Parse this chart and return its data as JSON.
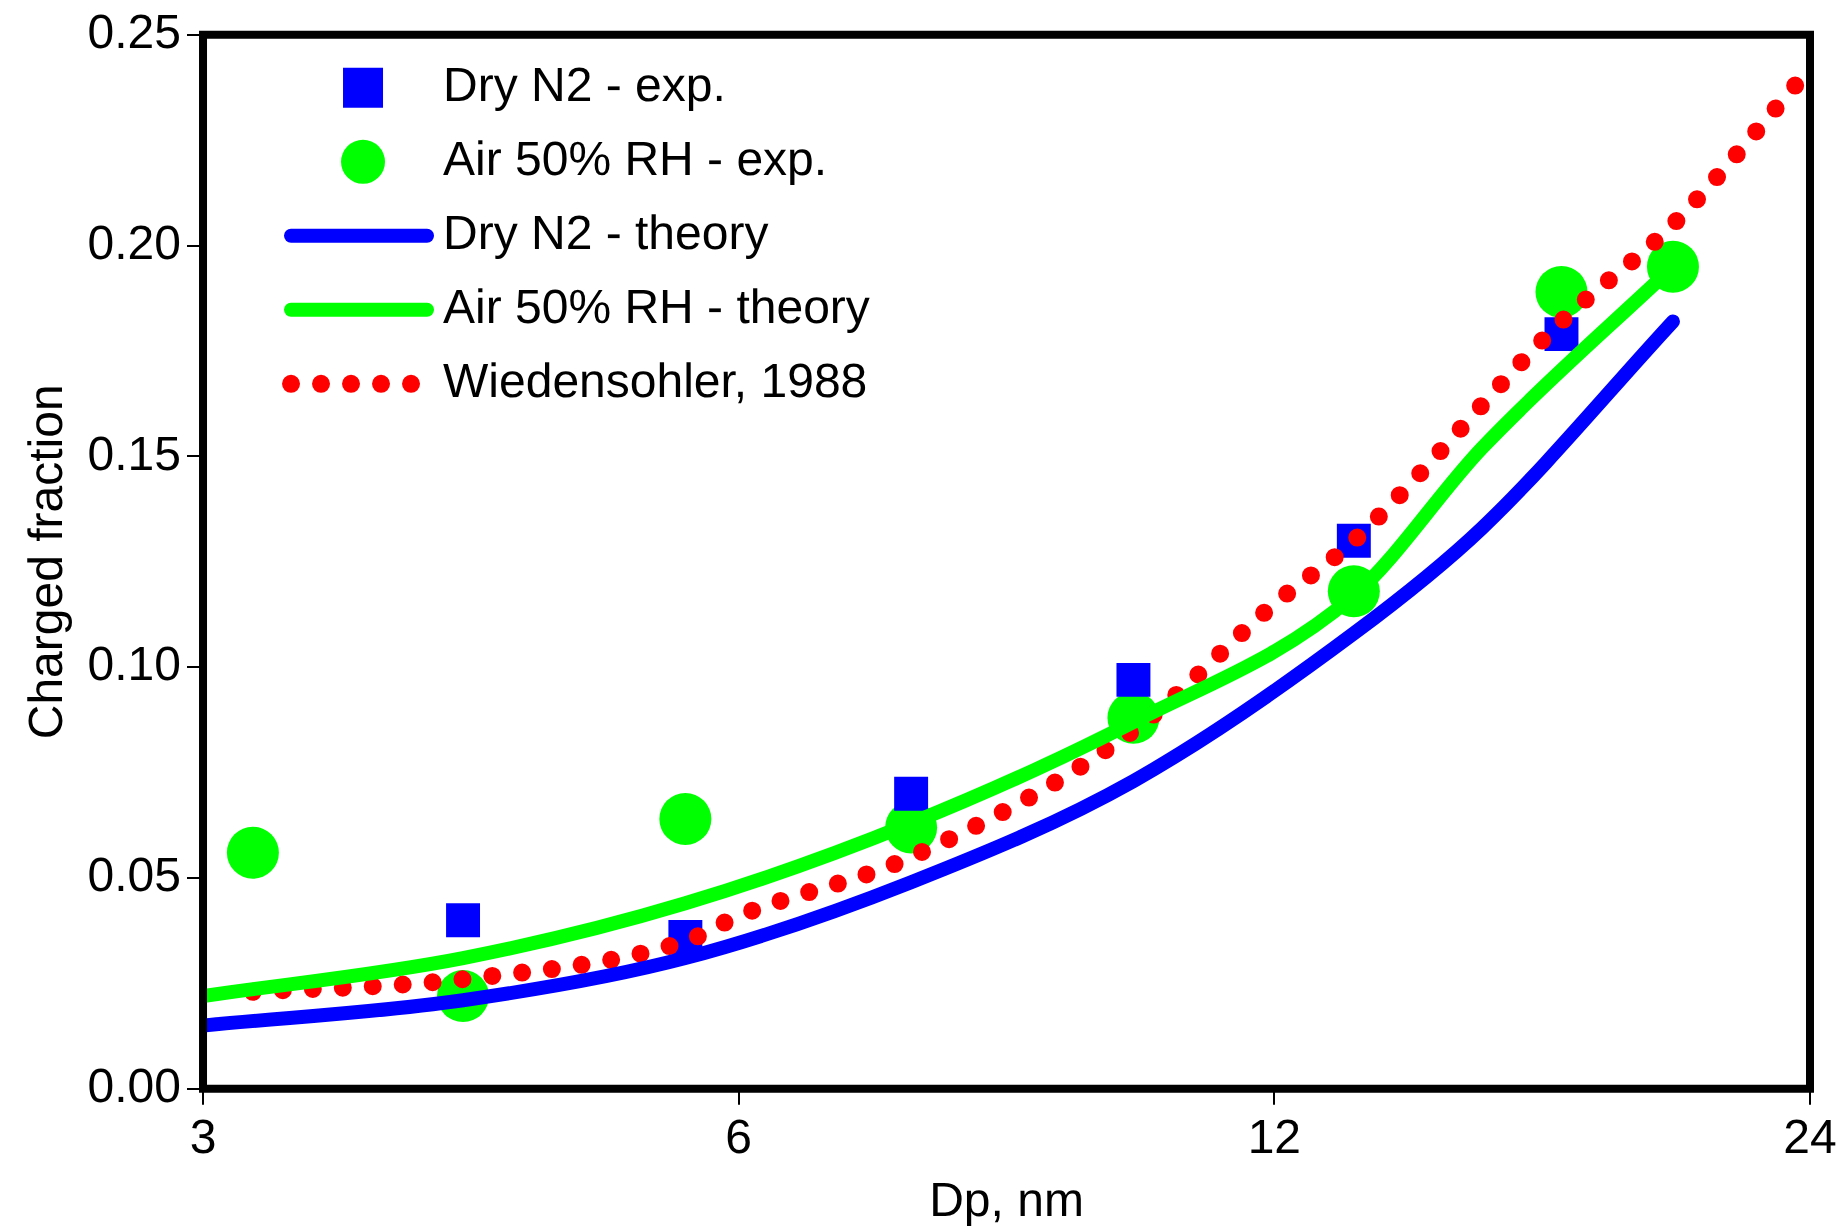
{
  "chart_data": {
    "type": "scatter",
    "xlabel": "Dp, nm",
    "ylabel": "Charged fraction",
    "log": "x",
    "xlim": [
      3,
      24
    ],
    "xticks": [
      3,
      6,
      12,
      24
    ],
    "ylim": [
      0,
      0.25
    ],
    "yticks": [
      {
        "value": 0,
        "label": "0.00"
      },
      {
        "value": 0.05,
        "label": "0.05"
      },
      {
        "value": 0.1,
        "label": "0.10"
      },
      {
        "value": 0.15,
        "label": "0.15"
      },
      {
        "value": 0.2,
        "label": "0.20"
      },
      {
        "value": 0.25,
        "label": "0.25"
      }
    ],
    "grid": false,
    "legend": "top left",
    "series": [
      {
        "name": "Dry N2 - exp.",
        "type": "scatter",
        "marker": "square",
        "color": "#0000ff",
        "x": [
          4.2,
          5.6,
          7.5,
          10,
          13.3,
          17.4
        ],
        "values": [
          0.04,
          0.036,
          0.07,
          0.097,
          0.13,
          0.179
        ]
      },
      {
        "name": "Air 50% RH - exp.",
        "type": "scatter",
        "marker": "circle",
        "color": "#00ff00",
        "x": [
          3.2,
          4.2,
          5.6,
          7.5,
          10,
          13.3,
          17.4,
          20.1
        ],
        "values": [
          0.056,
          0.022,
          0.064,
          0.062,
          0.088,
          0.118,
          0.189,
          0.195
        ]
      },
      {
        "name": "Dry N2 - theory",
        "type": "line",
        "marker": "none",
        "line_style": "solid",
        "color": "#0000ff",
        "x": [
          3,
          4.2,
          5.6,
          7.5,
          10,
          13.3,
          15.7,
          20.1
        ],
        "values": [
          0.015,
          0.021,
          0.031,
          0.049,
          0.073,
          0.108,
          0.133,
          0.182
        ]
      },
      {
        "name": "Air 50% RH - theory",
        "type": "line",
        "marker": "none",
        "line_style": "solid",
        "color": "#00ff00",
        "x": [
          3,
          4.2,
          5.6,
          7.5,
          10,
          13.3,
          15.7,
          20.1
        ],
        "values": [
          0.022,
          0.031,
          0.044,
          0.063,
          0.087,
          0.117,
          0.152,
          0.195
        ]
      },
      {
        "name": "Wiedensohler, 1988",
        "type": "line",
        "marker": "none",
        "line_style": "dotted",
        "color": "#ff0000",
        "x": [
          3.2,
          4.2,
          5.6,
          6,
          7.5,
          10,
          12,
          13.3,
          17.4,
          20.1,
          24
        ],
        "values": [
          0.023,
          0.026,
          0.035,
          0.041,
          0.055,
          0.085,
          0.115,
          0.13,
          0.182,
          0.205,
          0.242
        ]
      }
    ]
  }
}
